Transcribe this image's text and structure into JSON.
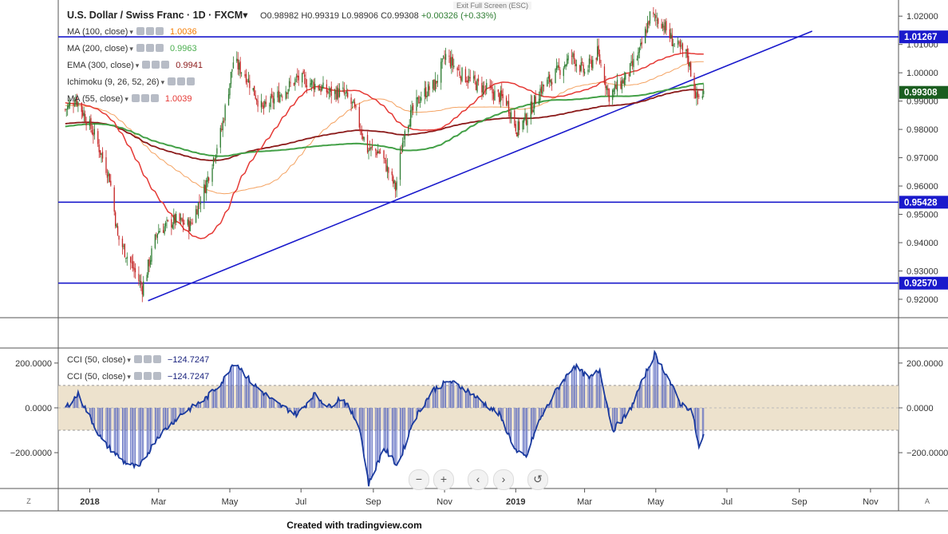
{
  "header": {
    "symbol": "U.S. Dollar / Swiss Franc · 1D · FXCM",
    "open": "O0.98982",
    "high": "H0.99319",
    "low": "L0.98906",
    "close": "C0.99308",
    "change": "+0.00326 (+0.33%)",
    "exit_fullscreen": "Exit Full Screen (ESC)"
  },
  "indicators": [
    {
      "label": "MA (100, close)",
      "value": "1.0036",
      "color": "#f57c00"
    },
    {
      "label": "MA (200, close)",
      "value": "0.9963",
      "color": "#4caf50"
    },
    {
      "label": "EMA (300, close)",
      "value": "0.9941",
      "color": "#8b1a1a"
    },
    {
      "label": "Ichimoku (9, 26, 52, 26)",
      "value": "",
      "color": "#2962ff"
    },
    {
      "label": "MA (55, close)",
      "value": "1.0039",
      "color": "#e53935"
    }
  ],
  "cci_legend": [
    {
      "label": "CCI (50, close)",
      "value": "−124.7247",
      "color": "#1a237e"
    },
    {
      "label": "CCI (50, close)",
      "value": "−124.7247",
      "color": "#1a237e"
    }
  ],
  "price_badges": {
    "resistance": "1.01267",
    "current": "0.99308",
    "support1": "0.95428",
    "support2": "0.92570"
  },
  "buttons": {
    "zoom_out": "−",
    "zoom_in": "+",
    "prev": "‹",
    "next": "›",
    "reset": "↺"
  },
  "corners": {
    "left": "Z",
    "right": "A"
  },
  "credit": "Created with tradingview.com",
  "colors": {
    "candle_up": "#2e7d32",
    "candle_down": "#c62828",
    "hline": "#1a1acc",
    "trendline": "#1a1acc",
    "ma55": "#e53935",
    "ma100": "#f4a261",
    "ma200": "#43a047",
    "ema300": "#8b1a1a",
    "cci": "#1a3a9e",
    "cci_band": "#ede2cd",
    "current_badge": "#1b5e20"
  },
  "chart_data": {
    "type": "candlestick",
    "title": "U.S. Dollar / Swiss Franc · 1D · FXCM",
    "x_ticks": [
      "2018",
      "Mar",
      "May",
      "Jul",
      "Sep",
      "Nov",
      "2019",
      "Mar",
      "May",
      "Jul",
      "Sep",
      "Nov"
    ],
    "y_ticks": [
      "1.02000",
      "1.01000",
      "1.00000",
      "0.99000",
      "0.98000",
      "0.97000",
      "0.96000",
      "0.95000",
      "0.94000",
      "0.93000",
      "0.92000"
    ],
    "ylim": [
      0.9135,
      1.0257
    ],
    "cci_ticks": [
      "200.0000",
      "0.0000",
      "−200.0000"
    ],
    "cci_ylim": [
      -360,
      260
    ],
    "cci_band": [
      -100,
      100
    ],
    "close_anchors": [
      {
        "date": "2017-12-11",
        "value": 0.987
      },
      {
        "date": "2017-12-20",
        "value": 0.991
      },
      {
        "date": "2018-01-05",
        "value": 0.978
      },
      {
        "date": "2018-01-18",
        "value": 0.963
      },
      {
        "date": "2018-01-25",
        "value": 0.942
      },
      {
        "date": "2018-02-06",
        "value": 0.932
      },
      {
        "date": "2018-02-15",
        "value": 0.924
      },
      {
        "date": "2018-02-28",
        "value": 0.944
      },
      {
        "date": "2018-03-15",
        "value": 0.948
      },
      {
        "date": "2018-03-28",
        "value": 0.946
      },
      {
        "date": "2018-04-10",
        "value": 0.96
      },
      {
        "date": "2018-04-24",
        "value": 0.98
      },
      {
        "date": "2018-05-04",
        "value": 1.004
      },
      {
        "date": "2018-05-15",
        "value": 0.999
      },
      {
        "date": "2018-05-29",
        "value": 0.987
      },
      {
        "date": "2018-06-12",
        "value": 0.992
      },
      {
        "date": "2018-06-28",
        "value": 0.998
      },
      {
        "date": "2018-07-12",
        "value": 0.996
      },
      {
        "date": "2018-07-25",
        "value": 0.993
      },
      {
        "date": "2018-08-06",
        "value": 0.993
      },
      {
        "date": "2018-08-15",
        "value": 0.988
      },
      {
        "date": "2018-08-27",
        "value": 0.973
      },
      {
        "date": "2018-09-07",
        "value": 0.972
      },
      {
        "date": "2018-09-20",
        "value": 0.959
      },
      {
        "date": "2018-09-28",
        "value": 0.981
      },
      {
        "date": "2018-10-12",
        "value": 0.992
      },
      {
        "date": "2018-10-24",
        "value": 0.996
      },
      {
        "date": "2018-11-02",
        "value": 1.006
      },
      {
        "date": "2018-11-14",
        "value": 1.0
      },
      {
        "date": "2018-11-28",
        "value": 0.996
      },
      {
        "date": "2018-12-12",
        "value": 0.993
      },
      {
        "date": "2018-12-24",
        "value": 0.99
      },
      {
        "date": "2019-01-02",
        "value": 0.98
      },
      {
        "date": "2019-01-10",
        "value": 0.984
      },
      {
        "date": "2019-01-22",
        "value": 0.994
      },
      {
        "date": "2019-02-05",
        "value": 1.0
      },
      {
        "date": "2019-02-18",
        "value": 1.006
      },
      {
        "date": "2019-03-01",
        "value": 1.0
      },
      {
        "date": "2019-03-12",
        "value": 1.007
      },
      {
        "date": "2019-03-22",
        "value": 0.992
      },
      {
        "date": "2019-04-05",
        "value": 0.998
      },
      {
        "date": "2019-04-17",
        "value": 1.007
      },
      {
        "date": "2019-04-26",
        "value": 1.02
      },
      {
        "date": "2019-05-06",
        "value": 1.018
      },
      {
        "date": "2019-05-17",
        "value": 1.01
      },
      {
        "date": "2019-05-28",
        "value": 1.006
      },
      {
        "date": "2019-06-05",
        "value": 0.991
      },
      {
        "date": "2019-06-11",
        "value": 0.993
      }
    ],
    "cci_anchors": [
      {
        "date": "2017-12-11",
        "value": 0
      },
      {
        "date": "2017-12-22",
        "value": 60
      },
      {
        "date": "2018-01-12",
        "value": -150
      },
      {
        "date": "2018-01-30",
        "value": -240
      },
      {
        "date": "2018-02-12",
        "value": -270
      },
      {
        "date": "2018-02-28",
        "value": -130
      },
      {
        "date": "2018-03-20",
        "value": -30
      },
      {
        "date": "2018-04-10",
        "value": 40
      },
      {
        "date": "2018-04-25",
        "value": 120
      },
      {
        "date": "2018-05-05",
        "value": 210
      },
      {
        "date": "2018-05-20",
        "value": 110
      },
      {
        "date": "2018-06-10",
        "value": 20
      },
      {
        "date": "2018-06-28",
        "value": -30
      },
      {
        "date": "2018-07-12",
        "value": 60
      },
      {
        "date": "2018-07-25",
        "value": 5
      },
      {
        "date": "2018-08-05",
        "value": 50
      },
      {
        "date": "2018-08-20",
        "value": -80
      },
      {
        "date": "2018-08-28",
        "value": -340
      },
      {
        "date": "2018-09-10",
        "value": -180
      },
      {
        "date": "2018-09-22",
        "value": -260
      },
      {
        "date": "2018-10-05",
        "value": -60
      },
      {
        "date": "2018-10-22",
        "value": 80
      },
      {
        "date": "2018-11-05",
        "value": 120
      },
      {
        "date": "2018-11-20",
        "value": 80
      },
      {
        "date": "2018-12-05",
        "value": 20
      },
      {
        "date": "2018-12-18",
        "value": -30
      },
      {
        "date": "2019-01-02",
        "value": -200
      },
      {
        "date": "2019-01-10",
        "value": -220
      },
      {
        "date": "2019-01-20",
        "value": -70
      },
      {
        "date": "2019-02-05",
        "value": 80
      },
      {
        "date": "2019-02-20",
        "value": 190
      },
      {
        "date": "2019-03-05",
        "value": 130
      },
      {
        "date": "2019-03-14",
        "value": 170
      },
      {
        "date": "2019-03-25",
        "value": -100
      },
      {
        "date": "2019-04-08",
        "value": -20
      },
      {
        "date": "2019-04-22",
        "value": 150
      },
      {
        "date": "2019-04-30",
        "value": 240
      },
      {
        "date": "2019-05-10",
        "value": 150
      },
      {
        "date": "2019-05-22",
        "value": 20
      },
      {
        "date": "2019-06-01",
        "value": -10
      },
      {
        "date": "2019-06-07",
        "value": -180
      },
      {
        "date": "2019-06-11",
        "value": -125
      }
    ],
    "horizontal_levels": [
      1.01267,
      0.95428,
      0.9257
    ],
    "trendline": [
      {
        "date": "2018-02-20",
        "value": 0.9195
      },
      {
        "date": "2019-09-12",
        "value": 1.0147
      }
    ],
    "x_start": "2017-12-05",
    "x_end": "2019-11-25"
  }
}
